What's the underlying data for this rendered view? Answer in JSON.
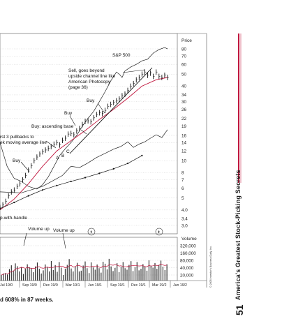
{
  "page": {
    "caption": "d 608% in 87 weeks.",
    "side_title": "America's Greatest Stock-Picking Secrets",
    "page_number": "51",
    "copyright": "© 2005 Investor's Business Daily, Inc.",
    "accent_color": "#c0143c"
  },
  "chart_data": {
    "type": "line",
    "price_axis_label": "Price",
    "price_ticks": [
      "80",
      "70",
      "60",
      "50",
      "40",
      "34",
      "30",
      "26",
      "22",
      "19",
      "16",
      "14",
      "12",
      "10",
      "8",
      "7",
      "6",
      "5",
      "4.0",
      "3.4",
      "3.0"
    ],
    "volume_axis_label": "Volume",
    "volume_ticks": [
      "320,000",
      "160,000",
      "80,000",
      "40,000",
      "20,000"
    ],
    "x_ticks": [
      "Jul 1970",
      "Sep 1970",
      "Dec 1970",
      "Mar 1971",
      "Jun 1971",
      "Sep 1971",
      "Dec 1971",
      "Mar 1972",
      "Jun 1972"
    ],
    "x_tick_display": [
      "Jul 19/0",
      "Sep 19/0",
      "Dec 19/0",
      "Mar 19/1",
      "Jun 19/1",
      "Sep 19/1",
      "Dec 19/1",
      "Mar 19/2",
      "Jun 19/2"
    ],
    "annotations": {
      "sp500": "S&P 500",
      "sell": [
        "Sell, goes beyond",
        "upside channel line like",
        "American Photocopy",
        "(page 36)"
      ],
      "buy_top": "Buy",
      "buy_mid": "Buy",
      "buy_low": "Buy",
      "ascending": "Buy: ascending base",
      "pullbacks": [
        "rst 3 pullbacks to",
        "ek moving average line"
      ],
      "a": "A",
      "b": "B",
      "c": "C",
      "cup": "p-with-handle",
      "volume_up_1": "Volume up",
      "volume_up_2": "Volume up"
    },
    "series": {
      "price": [
        [
          0,
          4.2
        ],
        [
          4,
          4.4
        ],
        [
          8,
          4.7
        ],
        [
          12,
          5.2
        ],
        [
          16,
          5.6
        ],
        [
          20,
          5.8
        ],
        [
          24,
          6.2
        ],
        [
          28,
          6.5
        ],
        [
          32,
          7.0
        ],
        [
          36,
          7.6
        ],
        [
          40,
          8.4
        ],
        [
          44,
          9.1
        ],
        [
          48,
          10.0
        ],
        [
          52,
          10.7
        ],
        [
          56,
          11.3
        ],
        [
          60,
          11.8
        ],
        [
          64,
          12.2
        ],
        [
          68,
          12.6
        ],
        [
          72,
          13.0
        ],
        [
          76,
          13.6
        ],
        [
          80,
          14.0
        ],
        [
          84,
          13.4
        ],
        [
          88,
          14.6
        ],
        [
          92,
          15.2
        ],
        [
          96,
          16.4
        ],
        [
          100,
          16.6
        ],
        [
          104,
          16.2
        ],
        [
          108,
          17.4
        ],
        [
          112,
          18.2
        ],
        [
          116,
          19.6
        ],
        [
          120,
          20.8
        ],
        [
          124,
          21.0
        ],
        [
          128,
          20.6
        ],
        [
          132,
          22.2
        ],
        [
          136,
          23.6
        ],
        [
          140,
          24.4
        ],
        [
          144,
          24.0
        ],
        [
          148,
          25.5
        ],
        [
          152,
          27.5
        ],
        [
          156,
          28.5
        ],
        [
          160,
          29.5
        ],
        [
          164,
          30.5
        ],
        [
          168,
          31.5
        ],
        [
          172,
          33.5
        ],
        [
          176,
          34.5
        ],
        [
          180,
          37.0
        ],
        [
          184,
          40.0
        ],
        [
          188,
          42.0
        ],
        [
          192,
          45.0
        ],
        [
          196,
          47.0
        ],
        [
          200,
          50.0
        ],
        [
          204,
          52.0
        ],
        [
          208,
          49.0
        ],
        [
          212,
          51.0
        ],
        [
          216,
          48.0
        ],
        [
          220,
          52.0
        ],
        [
          224,
          48.0
        ],
        [
          228,
          47.0
        ],
        [
          232,
          49.0
        ],
        [
          236,
          47.0
        ]
      ],
      "moving_avg": [
        [
          0,
          4.0
        ],
        [
          20,
          4.9
        ],
        [
          40,
          6.5
        ],
        [
          60,
          9.0
        ],
        [
          80,
          12.0
        ],
        [
          100,
          14.5
        ],
        [
          120,
          17.5
        ],
        [
          140,
          21.5
        ],
        [
          160,
          26.0
        ],
        [
          180,
          32.0
        ],
        [
          200,
          40.0
        ],
        [
          220,
          45.0
        ],
        [
          236,
          47.0
        ]
      ],
      "rel_strength": [
        [
          0,
          4.1
        ],
        [
          20,
          4.6
        ],
        [
          40,
          5.2
        ],
        [
          60,
          5.8
        ],
        [
          80,
          6.3
        ],
        [
          100,
          6.8
        ],
        [
          120,
          7.3
        ],
        [
          140,
          7.9
        ],
        [
          160,
          8.6
        ],
        [
          180,
          9.5
        ],
        [
          200,
          11.0
        ]
      ],
      "sp500": [
        [
          0,
          14.0
        ],
        [
          10,
          9.0
        ],
        [
          20,
          7.2
        ],
        [
          30,
          6.8
        ],
        [
          40,
          6.2
        ],
        [
          52,
          5.9
        ],
        [
          60,
          6.4
        ],
        [
          68,
          7.4
        ],
        [
          76,
          9.0
        ],
        [
          84,
          11.0
        ],
        [
          92,
          12.5
        ],
        [
          100,
          14.0
        ],
        [
          108,
          16.0
        ],
        [
          116,
          19.0
        ],
        [
          124,
          22.0
        ],
        [
          132,
          25.0
        ],
        [
          140,
          30.0
        ],
        [
          148,
          36.0
        ],
        [
          156,
          44.0
        ],
        [
          164,
          52.0
        ],
        [
          168,
          50.0
        ],
        [
          172,
          47.0
        ],
        [
          176,
          53.0
        ],
        [
          184,
          57.0
        ],
        [
          192,
          60.0
        ],
        [
          200,
          64.0
        ],
        [
          208,
          66.0
        ],
        [
          216,
          74.0
        ],
        [
          224,
          79.0
        ],
        [
          232,
          82.0
        ],
        [
          236,
          80.0
        ]
      ],
      "lower_channel": [
        [
          0,
          5.6
        ],
        [
          30,
          5.5
        ],
        [
          60,
          6.2
        ],
        [
          88,
          7.6
        ],
        [
          100,
          9.0
        ],
        [
          112,
          8.8
        ],
        [
          124,
          9.6
        ],
        [
          136,
          10.6
        ],
        [
          150,
          11.6
        ],
        [
          160,
          12.4
        ],
        [
          170,
          13.0
        ],
        [
          180,
          14.2
        ],
        [
          188,
          12.8
        ],
        [
          196,
          13.6
        ],
        [
          204,
          14.2
        ],
        [
          212,
          15.2
        ],
        [
          220,
          16.2
        ],
        [
          228,
          15.4
        ],
        [
          236,
          17.8
        ]
      ],
      "volume_k": [
        20,
        23,
        24,
        21,
        35,
        50,
        30,
        60,
        46,
        28,
        42,
        22,
        36,
        55,
        42,
        38,
        26,
        45,
        65,
        36,
        23,
        31,
        54,
        43,
        28,
        75,
        32,
        51,
        27,
        68,
        40,
        20,
        36,
        52,
        90,
        37,
        28,
        44,
        63,
        28,
        30,
        49,
        72,
        38,
        24,
        66,
        41,
        33,
        54,
        38,
        25,
        70,
        58,
        34,
        92,
        45,
        29,
        39,
        61,
        26,
        44,
        68,
        38,
        33,
        52,
        74,
        29,
        42,
        68,
        31,
        36,
        56,
        45,
        30,
        80,
        48,
        40,
        62,
        36,
        52,
        78,
        44,
        32,
        55
      ]
    }
  }
}
